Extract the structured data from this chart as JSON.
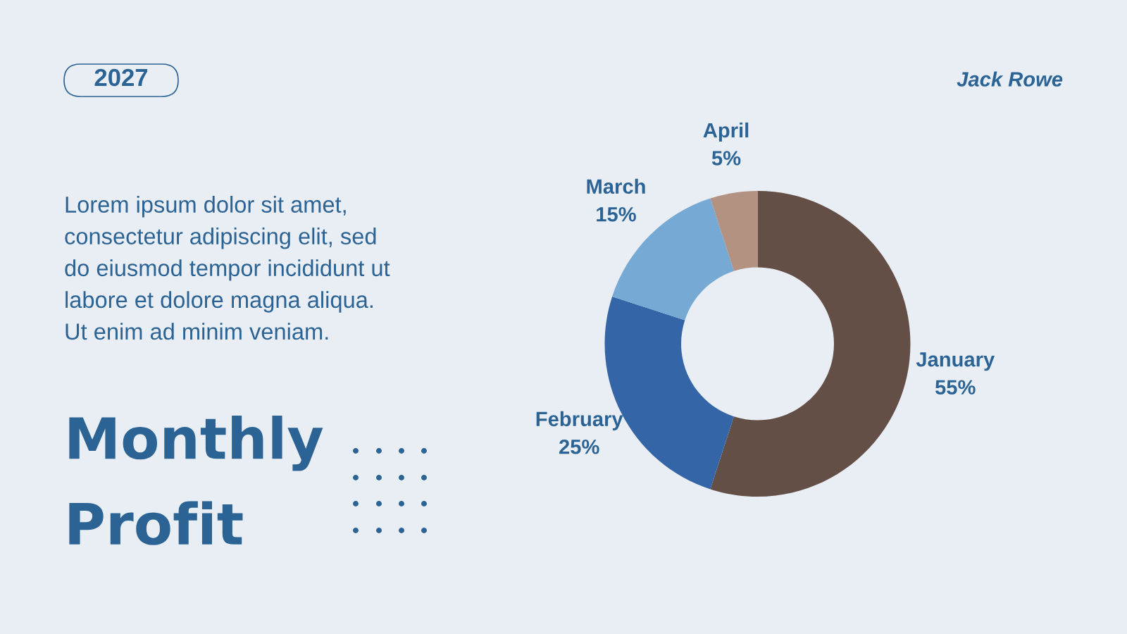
{
  "chart_data": {
    "type": "donut",
    "title": "Monthly Profit",
    "categories": [
      "January",
      "February",
      "March",
      "April"
    ],
    "values": [
      55,
      25,
      15,
      5
    ],
    "colors": [
      "#634f46",
      "#3465a6",
      "#76a9d4",
      "#b39282"
    ],
    "value_labels": [
      "55%",
      "25%",
      "15%",
      "5%"
    ],
    "annotations": [
      "2027",
      "Jack Rowe",
      "Lorem ipsum dolor sit amet, consectetur adipiscing elit, sed do eiusmod tempor incididunt ut labore et dolore magna aliqua. Ut enim ad minim veniam."
    ]
  }
}
